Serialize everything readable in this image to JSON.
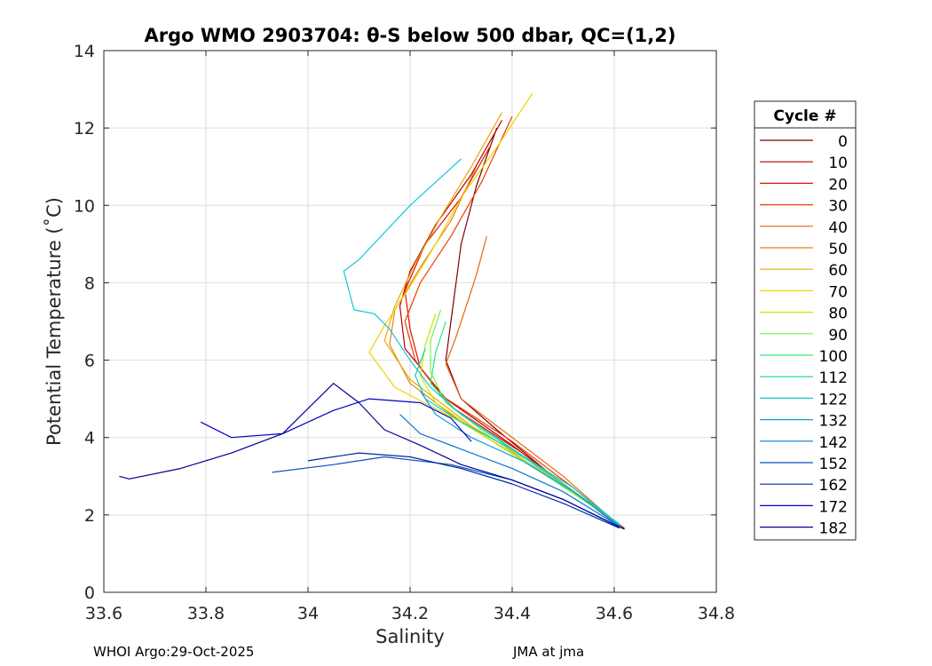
{
  "chart_data": {
    "type": "line",
    "title": "Argo WMO 2903704: θ-S below 500 dbar,  QC=(1,2)",
    "xlabel": "Salinity",
    "ylabel": "Potential Temperature (˚C)",
    "xlim": [
      33.6,
      34.8
    ],
    "ylim": [
      0,
      14
    ],
    "xticks": [
      "33.6",
      "33.8",
      "34",
      "34.2",
      "34.4",
      "34.6",
      "34.8"
    ],
    "yticks": [
      "0",
      "2",
      "4",
      "6",
      "8",
      "10",
      "12",
      "14"
    ],
    "grid": true,
    "legend_title": "Cycle #",
    "legend_position": "right",
    "series": [
      {
        "name": "0",
        "color": "#800000",
        "values": [
          [
            34.37,
            12.0
          ],
          [
            34.33,
            10.5
          ],
          [
            34.3,
            9.0
          ],
          [
            34.29,
            8.0
          ],
          [
            34.28,
            7.0
          ],
          [
            34.27,
            6.0
          ],
          [
            34.3,
            5.0
          ],
          [
            34.37,
            4.2
          ],
          [
            34.48,
            3.0
          ],
          [
            34.62,
            1.65
          ]
        ]
      },
      {
        "name": "10",
        "color": "#b80000",
        "values": [
          [
            34.38,
            12.2
          ],
          [
            34.32,
            10.8
          ],
          [
            34.25,
            9.5
          ],
          [
            34.2,
            8.3
          ],
          [
            34.18,
            7.4
          ],
          [
            34.19,
            6.3
          ],
          [
            34.27,
            5.0
          ],
          [
            34.4,
            3.8
          ],
          [
            34.52,
            2.6
          ],
          [
            34.61,
            1.7
          ]
        ]
      },
      {
        "name": "20",
        "color": "#dc1400",
        "values": [
          [
            34.36,
            11.6
          ],
          [
            34.3,
            10.2
          ],
          [
            34.23,
            9.0
          ],
          [
            34.19,
            7.8
          ],
          [
            34.2,
            6.8
          ],
          [
            34.22,
            5.8
          ],
          [
            34.28,
            4.8
          ],
          [
            34.42,
            3.6
          ],
          [
            34.53,
            2.5
          ],
          [
            34.61,
            1.7
          ]
        ]
      },
      {
        "name": "30",
        "color": "#f03c00",
        "values": [
          [
            34.4,
            12.3
          ],
          [
            34.34,
            10.6
          ],
          [
            34.28,
            9.2
          ],
          [
            34.22,
            8.0
          ],
          [
            34.19,
            7.0
          ],
          [
            34.21,
            6.0
          ],
          [
            34.26,
            5.1
          ],
          [
            34.4,
            3.9
          ],
          [
            34.52,
            2.7
          ],
          [
            34.61,
            1.72
          ]
        ]
      },
      {
        "name": "40",
        "color": "#e66414",
        "values": [
          [
            34.35,
            9.2
          ],
          [
            34.33,
            8.2
          ],
          [
            34.31,
            7.4
          ],
          [
            34.29,
            6.6
          ],
          [
            34.27,
            5.9
          ],
          [
            34.3,
            5.0
          ],
          [
            34.4,
            4.0
          ],
          [
            34.5,
            3.0
          ],
          [
            34.61,
            1.72
          ]
        ]
      },
      {
        "name": "50",
        "color": "#e68214",
        "values": [
          [
            34.33,
            11.0
          ],
          [
            34.28,
            9.6
          ],
          [
            34.22,
            8.4
          ],
          [
            34.17,
            7.3
          ],
          [
            34.16,
            6.4
          ],
          [
            34.2,
            5.4
          ],
          [
            34.3,
            4.4
          ],
          [
            34.45,
            3.2
          ],
          [
            34.61,
            1.75
          ]
        ]
      },
      {
        "name": "60",
        "color": "#e6aa00",
        "values": [
          [
            34.38,
            12.4
          ],
          [
            34.32,
            11.0
          ],
          [
            34.26,
            9.7
          ],
          [
            34.21,
            8.5
          ],
          [
            34.17,
            7.4
          ],
          [
            34.15,
            6.5
          ],
          [
            34.2,
            5.5
          ],
          [
            34.32,
            4.3
          ],
          [
            34.47,
            3.1
          ],
          [
            34.61,
            1.75
          ]
        ]
      },
      {
        "name": "70",
        "color": "#f0d200",
        "values": [
          [
            34.44,
            12.9
          ],
          [
            34.37,
            11.5
          ],
          [
            34.3,
            10.2
          ],
          [
            34.25,
            9.0
          ],
          [
            34.2,
            7.9
          ],
          [
            34.15,
            6.9
          ],
          [
            34.12,
            6.2
          ],
          [
            34.17,
            5.3
          ],
          [
            34.3,
            4.4
          ],
          [
            34.46,
            3.1
          ],
          [
            34.61,
            1.76
          ]
        ]
      },
      {
        "name": "80",
        "color": "#c8e600",
        "values": [
          [
            34.25,
            7.2
          ],
          [
            34.23,
            6.4
          ],
          [
            34.22,
            5.6
          ],
          [
            34.25,
            4.9
          ],
          [
            34.35,
            4.0
          ],
          [
            34.48,
            2.9
          ],
          [
            34.61,
            1.76
          ]
        ]
      },
      {
        "name": "90",
        "color": "#78f050",
        "values": [
          [
            34.26,
            7.3
          ],
          [
            34.24,
            6.5
          ],
          [
            34.24,
            5.7
          ],
          [
            34.27,
            4.9
          ],
          [
            34.36,
            4.0
          ],
          [
            34.48,
            2.9
          ],
          [
            34.61,
            1.77
          ]
        ]
      },
      {
        "name": "100",
        "color": "#32e682",
        "values": [
          [
            34.27,
            7.0
          ],
          [
            34.25,
            6.2
          ],
          [
            34.24,
            5.4
          ],
          [
            34.29,
            4.7
          ],
          [
            34.38,
            3.9
          ],
          [
            34.5,
            2.8
          ],
          [
            34.61,
            1.77
          ]
        ]
      },
      {
        "name": "112",
        "color": "#14d2aa",
        "values": [
          [
            34.23,
            6.3
          ],
          [
            34.21,
            5.6
          ],
          [
            34.23,
            5.0
          ],
          [
            34.3,
            4.4
          ],
          [
            34.4,
            3.7
          ],
          [
            34.51,
            2.7
          ],
          [
            34.61,
            1.76
          ]
        ]
      },
      {
        "name": "122",
        "color": "#14c8d2",
        "values": [
          [
            34.3,
            11.2
          ],
          [
            34.2,
            10.0
          ],
          [
            34.1,
            8.6
          ],
          [
            34.07,
            8.3
          ],
          [
            34.09,
            7.3
          ],
          [
            34.13,
            7.2
          ],
          [
            34.16,
            6.8
          ],
          [
            34.2,
            6.0
          ],
          [
            34.24,
            5.3
          ],
          [
            34.3,
            4.6
          ],
          [
            34.4,
            3.7
          ],
          [
            34.52,
            2.7
          ],
          [
            34.61,
            1.75
          ]
        ]
      },
      {
        "name": "132",
        "color": "#0aa0dc",
        "values": [
          [
            34.22,
            5.2
          ],
          [
            34.25,
            4.6
          ],
          [
            34.32,
            4.0
          ],
          [
            34.42,
            3.4
          ],
          [
            34.52,
            2.6
          ],
          [
            34.61,
            1.72
          ]
        ]
      },
      {
        "name": "142",
        "color": "#0a78d2",
        "values": [
          [
            34.18,
            4.6
          ],
          [
            34.22,
            4.1
          ],
          [
            34.3,
            3.7
          ],
          [
            34.4,
            3.2
          ],
          [
            34.5,
            2.6
          ],
          [
            34.61,
            1.7
          ]
        ]
      },
      {
        "name": "152",
        "color": "#0a50c8",
        "values": [
          [
            33.93,
            3.1
          ],
          [
            34.05,
            3.3
          ],
          [
            34.15,
            3.5
          ],
          [
            34.28,
            3.3
          ],
          [
            34.4,
            2.9
          ],
          [
            34.5,
            2.4
          ],
          [
            34.61,
            1.68
          ]
        ]
      },
      {
        "name": "162",
        "color": "#00289b",
        "values": [
          [
            34.0,
            3.4
          ],
          [
            34.1,
            3.6
          ],
          [
            34.2,
            3.5
          ],
          [
            34.3,
            3.2
          ],
          [
            34.4,
            2.8
          ],
          [
            34.5,
            2.3
          ],
          [
            34.61,
            1.66
          ]
        ]
      },
      {
        "name": "172",
        "color": "#0000c8",
        "values": [
          [
            33.79,
            4.4
          ],
          [
            33.85,
            4.0
          ],
          [
            33.95,
            4.1
          ],
          [
            34.05,
            4.7
          ],
          [
            34.12,
            5.0
          ],
          [
            34.22,
            4.9
          ],
          [
            34.28,
            4.5
          ],
          [
            34.32,
            3.9
          ]
        ]
      },
      {
        "name": "182",
        "color": "#000096",
        "values": [
          [
            33.63,
            3.0
          ],
          [
            33.65,
            2.93
          ],
          [
            33.75,
            3.2
          ],
          [
            33.85,
            3.6
          ],
          [
            33.95,
            4.1
          ],
          [
            34.05,
            5.4
          ],
          [
            34.1,
            4.9
          ],
          [
            34.15,
            4.2
          ],
          [
            34.22,
            3.8
          ],
          [
            34.3,
            3.3
          ],
          [
            34.4,
            2.9
          ],
          [
            34.5,
            2.4
          ],
          [
            34.62,
            1.63
          ]
        ]
      }
    ]
  },
  "footer": {
    "left": "WHOI Argo:29-Oct-2025",
    "right": "JMA at jma"
  }
}
